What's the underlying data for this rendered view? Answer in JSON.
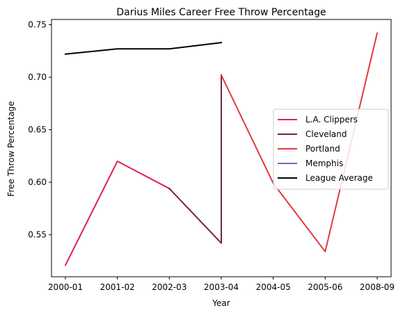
{
  "chart_data": {
    "type": "line",
    "title": "Darius Miles Career Free Throw Percentage",
    "xlabel": "Year",
    "ylabel": "Free Throw Percentage",
    "categories": [
      "2000-01",
      "2001-02",
      "2002-03",
      "2003-04",
      "2004-05",
      "2005-06",
      "2008-09"
    ],
    "ylim": [
      0.51,
      0.755
    ],
    "yticks": [
      "0.55",
      "0.60",
      "0.65",
      "0.70",
      "0.75"
    ],
    "grid": false,
    "legend_position": "center-right",
    "series": [
      {
        "name": "L.A. Clippers",
        "color": "#e0204e",
        "values": [
          0.521,
          0.62,
          0.594,
          null,
          null,
          null,
          null
        ]
      },
      {
        "name": "Cleveland",
        "color": "#6f263d",
        "values": [
          null,
          null,
          0.594,
          0.542,
          null,
          null,
          null
        ],
        "extra_point": {
          "x": "2003-04",
          "y": 0.702
        }
      },
      {
        "name": "Portland",
        "color": "#e03a3e",
        "values": [
          null,
          null,
          null,
          0.702,
          0.599,
          0.534,
          0.742
        ]
      },
      {
        "name": "Memphis",
        "color": "#5d76a9",
        "values": [
          null,
          null,
          null,
          null,
          null,
          null,
          null
        ]
      },
      {
        "name": "League Average",
        "color": "#000000",
        "values": [
          0.722,
          0.727,
          0.727,
          0.733,
          null,
          null,
          null
        ]
      }
    ]
  }
}
